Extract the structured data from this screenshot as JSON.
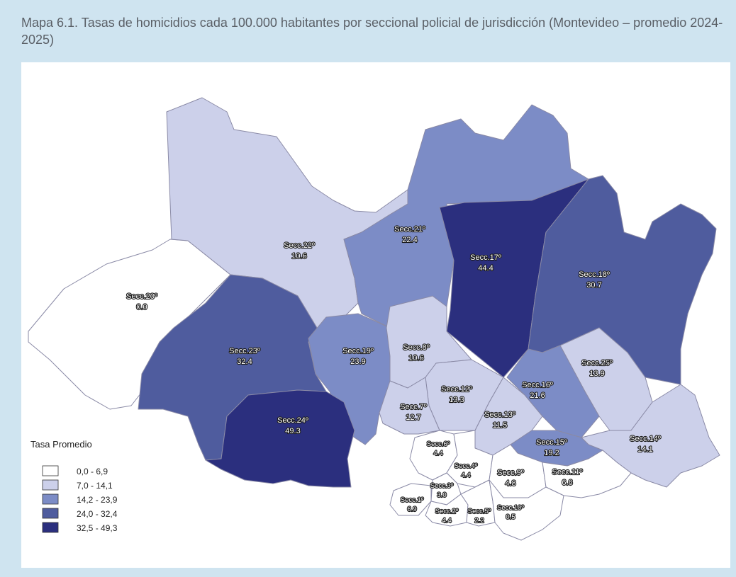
{
  "caption": "Mapa 6.1. Tasas de homicidios cada 100.000 habitantes por seccional policial de jurisdicción (Montevideo – promedio 2024-2025)",
  "legend": {
    "title": "Tasa Promedio",
    "classes": [
      {
        "label": "0,0 - 6,9",
        "color": "#ffffff"
      },
      {
        "label": "7,0 - 14,1",
        "color": "#ccd0ea"
      },
      {
        "label": "14,2 - 23,9",
        "color": "#7c8cc6"
      },
      {
        "label": "24,0 - 32,4",
        "color": "#4f5c9e"
      },
      {
        "label": "32,5 - 49,3",
        "color": "#2b2f7e"
      }
    ]
  },
  "sections": [
    {
      "id": "s20",
      "name": "Secc.20º",
      "value": "0.0"
    },
    {
      "id": "s22",
      "name": "Secc.22º",
      "value": "10.6"
    },
    {
      "id": "s21",
      "name": "Secc.21º",
      "value": "22.4"
    },
    {
      "id": "s17",
      "name": "Secc.17º",
      "value": "44.4"
    },
    {
      "id": "s18",
      "name": "Secc.18º",
      "value": "30.7"
    },
    {
      "id": "s23",
      "name": "Secc.23º",
      "value": "32.4"
    },
    {
      "id": "s19",
      "name": "Secc.19º",
      "value": "23.9"
    },
    {
      "id": "s8",
      "name": "Secc.8º",
      "value": "10.6"
    },
    {
      "id": "s25",
      "name": "Secc.25º",
      "value": "13.9"
    },
    {
      "id": "s16",
      "name": "Secc.16º",
      "value": "21.6"
    },
    {
      "id": "s12",
      "name": "Secc.12º",
      "value": "13.3"
    },
    {
      "id": "s7",
      "name": "Secc.7º",
      "value": "12.7"
    },
    {
      "id": "s13",
      "name": "Secc.13º",
      "value": "11.5"
    },
    {
      "id": "s24",
      "name": "Secc.24º",
      "value": "49.3"
    },
    {
      "id": "s14",
      "name": "Secc.14º",
      "value": "14.1"
    },
    {
      "id": "s15",
      "name": "Secc.15º",
      "value": "19.2"
    },
    {
      "id": "s6",
      "name": "Secc.6º",
      "value": "4.4"
    },
    {
      "id": "s4",
      "name": "Secc.4º",
      "value": "4.4"
    },
    {
      "id": "s9",
      "name": "Secc.9º",
      "value": "4.8"
    },
    {
      "id": "s11",
      "name": "Secc.11º",
      "value": "6.6"
    },
    {
      "id": "s3",
      "name": "Secc.3º",
      "value": "3.0"
    },
    {
      "id": "s1",
      "name": "Secc.1º",
      "value": "6.9"
    },
    {
      "id": "s2",
      "name": "Secc.2º",
      "value": "4.4"
    },
    {
      "id": "s5",
      "name": "Secc.5º",
      "value": "2.2"
    },
    {
      "id": "s10",
      "name": "Secc.10º",
      "value": "0.5"
    }
  ]
}
